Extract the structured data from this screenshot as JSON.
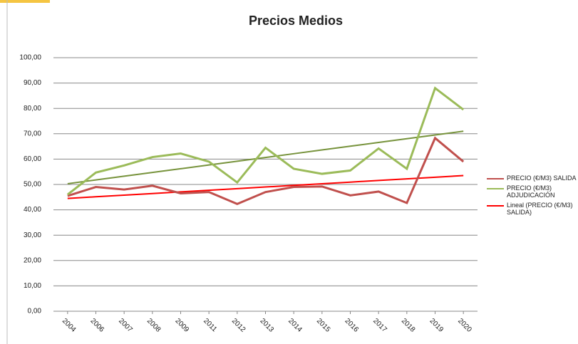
{
  "chart_data": {
    "type": "line",
    "title": "Precios Medios",
    "categories": [
      "2004",
      "2006",
      "2007",
      "2008",
      "2009",
      "2011",
      "2012",
      "2013",
      "2014",
      "2015",
      "2016",
      "2017",
      "2018",
      "2019",
      "2020"
    ],
    "series": [
      {
        "name": "PRECIO (€/M3) SALIDA",
        "color": "#c0504d",
        "values": [
          45.5,
          49,
          48,
          49.5,
          46.5,
          47,
          42.3,
          47,
          49,
          49.2,
          45.7,
          47.2,
          42.7,
          68.3,
          59
        ]
      },
      {
        "name": "PRECIO (€/M3) ADJUDICACIÓN",
        "color": "#9bbb59",
        "values": [
          46,
          54.7,
          57.5,
          60.8,
          62.2,
          59,
          50.8,
          64.5,
          56.2,
          54.2,
          55.5,
          64.2,
          56.2,
          88,
          79.5
        ]
      },
      {
        "name": "Lineal (PRECIO (€/M3) SALIDA)",
        "color": "#ff0000",
        "values": [
          44.5,
          45.14,
          45.79,
          46.43,
          47.07,
          47.71,
          48.36,
          49.0,
          49.64,
          50.29,
          50.93,
          51.57,
          52.21,
          52.86,
          53.5
        ]
      },
      {
        "color": "#77933c",
        "values": [
          50.3,
          51.78,
          53.26,
          54.74,
          56.21,
          57.69,
          59.17,
          60.65,
          62.13,
          63.61,
          65.09,
          66.56,
          68.04,
          69.52,
          71.0
        ]
      }
    ],
    "ylim": [
      0,
      100
    ],
    "yticks": [
      {
        "value": 0,
        "label": "0,00"
      },
      {
        "value": 10,
        "label": "10,00"
      },
      {
        "value": 20,
        "label": "20,00"
      },
      {
        "value": 30,
        "label": "30,00"
      },
      {
        "value": 40,
        "label": "40,00"
      },
      {
        "value": 50,
        "label": "50,00"
      },
      {
        "value": 60,
        "label": "60,00"
      },
      {
        "value": 70,
        "label": "70,00"
      },
      {
        "value": 80,
        "label": "80,00"
      },
      {
        "value": 90,
        "label": "90,00"
      },
      {
        "value": 100,
        "label": "100,00"
      }
    ],
    "grid": true,
    "legend": "right"
  }
}
